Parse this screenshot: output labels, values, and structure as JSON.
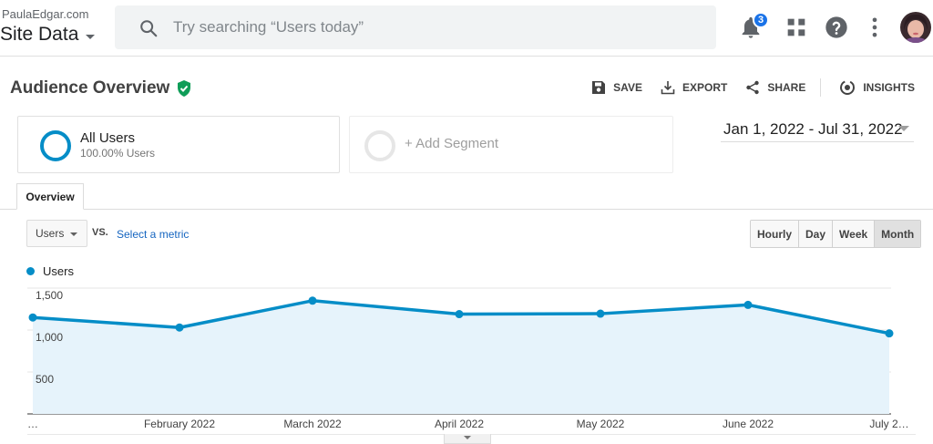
{
  "header": {
    "account": "PaulaEdgar.com",
    "property": "Site Data",
    "search_placeholder": "Try searching “Users today”",
    "notification_count": "3",
    "icons": [
      "search-icon",
      "bell-icon",
      "apps-grid-icon",
      "help-icon",
      "more-vert-icon"
    ]
  },
  "report": {
    "title": "Audience Overview",
    "verified_icon": "check-shield-icon",
    "actions": {
      "save": "SAVE",
      "export": "EXPORT",
      "share": "SHARE",
      "insights": "INSIGHTS"
    }
  },
  "segments": {
    "all_users_name": "All Users",
    "all_users_sub": "100.00% Users",
    "add_segment": "+ Add Segment"
  },
  "date_range": "Jan 1, 2022 - Jul 31, 2022",
  "tabs": [
    "Overview"
  ],
  "metric": {
    "selected": "Users",
    "vs": "VS.",
    "select_metric": "Select a metric"
  },
  "granularity": {
    "options": [
      "Hourly",
      "Day",
      "Week",
      "Month"
    ],
    "active": "Month"
  },
  "colors": {
    "series": "#058dc7",
    "fill": "#e6f3fb",
    "link": "#1565c0"
  },
  "chart_data": {
    "type": "area",
    "legend": "Users",
    "x_labels": [
      "…",
      "February 2022",
      "March 2022",
      "April 2022",
      "May 2022",
      "June 2022",
      "July 2…"
    ],
    "series": [
      {
        "name": "Users",
        "values": [
          1150,
          1030,
          1350,
          1190,
          1195,
          1300,
          960
        ]
      }
    ],
    "y_ticks": [
      "1,500",
      "1,000",
      "500"
    ],
    "ylim": [
      0,
      1500
    ],
    "grid": true
  }
}
